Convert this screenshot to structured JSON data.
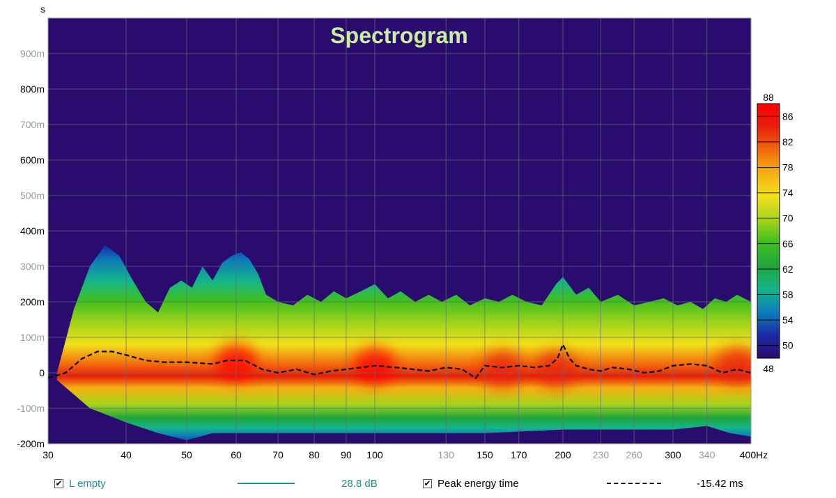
{
  "chart_data": {
    "type": "heatmap",
    "title": "Spectrogram",
    "ylabel": "s",
    "x_unit": "Hz",
    "xscale": "log",
    "xlim": [
      30,
      400
    ],
    "ylim": [
      -0.2,
      1.0
    ],
    "x_ticks": [
      {
        "value": 30,
        "label": "30",
        "major": true
      },
      {
        "value": 40,
        "label": "40",
        "major": true
      },
      {
        "value": 50,
        "label": "50",
        "major": true
      },
      {
        "value": 60,
        "label": "60",
        "major": true
      },
      {
        "value": 70,
        "label": "70",
        "major": true
      },
      {
        "value": 80,
        "label": "80",
        "major": true
      },
      {
        "value": 90,
        "label": "90",
        "major": true
      },
      {
        "value": 100,
        "label": "100",
        "major": true
      },
      {
        "value": 130,
        "label": "130",
        "major": false
      },
      {
        "value": 150,
        "label": "150",
        "major": true
      },
      {
        "value": 170,
        "label": "170",
        "major": true
      },
      {
        "value": 200,
        "label": "200",
        "major": true
      },
      {
        "value": 230,
        "label": "230",
        "major": false
      },
      {
        "value": 260,
        "label": "260",
        "major": false
      },
      {
        "value": 300,
        "label": "300",
        "major": true
      },
      {
        "value": 340,
        "label": "340",
        "major": false
      },
      {
        "value": 400,
        "label": "400Hz",
        "major": true
      }
    ],
    "y_ticks": [
      {
        "value": 0.9,
        "label": "900m",
        "major": false
      },
      {
        "value": 0.8,
        "label": "800m",
        "major": true
      },
      {
        "value": 0.7,
        "label": "700m",
        "major": false
      },
      {
        "value": 0.6,
        "label": "600m",
        "major": true
      },
      {
        "value": 0.5,
        "label": "500m",
        "major": false
      },
      {
        "value": 0.4,
        "label": "400m",
        "major": true
      },
      {
        "value": 0.3,
        "label": "300m",
        "major": false
      },
      {
        "value": 0.2,
        "label": "200m",
        "major": true
      },
      {
        "value": 0.1,
        "label": "100m",
        "major": false
      },
      {
        "value": 0.0,
        "label": "0",
        "major": true
      },
      {
        "value": -0.1,
        "label": "-100m",
        "major": false
      },
      {
        "value": -0.2,
        "label": "-200m",
        "major": true
      }
    ],
    "colorbar": {
      "min": 48,
      "max": 88,
      "min_label": "48",
      "max_label": "88",
      "ticks": [
        86,
        82,
        78,
        74,
        70,
        66,
        62,
        58,
        54,
        50
      ],
      "tick_labels": [
        "86",
        "82",
        "78",
        "74",
        "70",
        "66",
        "62",
        "58",
        "54",
        "50"
      ],
      "colors": [
        "#2a0b6e",
        "#1a2aa8",
        "#0a7fb8",
        "#15b48c",
        "#1fa63a",
        "#3fbf1f",
        "#a8d41a",
        "#f2e01a",
        "#f5b012",
        "#f26a0c",
        "#e8200c",
        "#ff0000"
      ]
    },
    "background_color": "#2a0b6e",
    "envelope_top": {
      "x": [
        31,
        33,
        35,
        37,
        39,
        41,
        43,
        45,
        47,
        49,
        51,
        53,
        55,
        57,
        59,
        61,
        63,
        65,
        67,
        70,
        74,
        78,
        82,
        86,
        90,
        95,
        100,
        105,
        110,
        116,
        122,
        128,
        135,
        142,
        150,
        158,
        166,
        175,
        185,
        195,
        200,
        210,
        220,
        230,
        245,
        260,
        275,
        290,
        305,
        320,
        335,
        350,
        365,
        380,
        400
      ],
      "y": [
        0.0,
        0.18,
        0.3,
        0.36,
        0.33,
        0.26,
        0.2,
        0.17,
        0.24,
        0.26,
        0.24,
        0.3,
        0.26,
        0.31,
        0.33,
        0.34,
        0.32,
        0.28,
        0.22,
        0.2,
        0.19,
        0.22,
        0.2,
        0.23,
        0.21,
        0.23,
        0.25,
        0.21,
        0.23,
        0.2,
        0.22,
        0.2,
        0.22,
        0.19,
        0.21,
        0.2,
        0.22,
        0.2,
        0.19,
        0.25,
        0.27,
        0.22,
        0.24,
        0.2,
        0.22,
        0.19,
        0.2,
        0.21,
        0.19,
        0.2,
        0.18,
        0.21,
        0.2,
        0.22,
        0.2
      ]
    },
    "envelope_bottom": {
      "x": [
        31,
        35,
        40,
        45,
        50,
        55,
        60,
        70,
        80,
        90,
        100,
        120,
        150,
        200,
        250,
        300,
        340,
        370,
        400
      ],
      "y": [
        -0.02,
        -0.1,
        -0.14,
        -0.17,
        -0.19,
        -0.17,
        -0.17,
        -0.17,
        -0.17,
        -0.17,
        -0.17,
        -0.17,
        -0.17,
        -0.16,
        -0.16,
        -0.16,
        -0.15,
        -0.17,
        -0.18
      ]
    },
    "hot_regions": [
      {
        "freq": 60,
        "time": 0.03,
        "db": 87
      },
      {
        "freq": 100,
        "time": 0.02,
        "db": 87
      },
      {
        "freq": 160,
        "time": 0.01,
        "db": 86
      },
      {
        "freq": 195,
        "time": 0.01,
        "db": 84
      },
      {
        "freq": 380,
        "time": 0.02,
        "db": 85
      }
    ],
    "series": [
      {
        "name": "Peak energy time",
        "style": "dashed",
        "color": "#000000",
        "x": [
          30,
          32,
          34,
          36,
          38,
          40,
          43,
          46,
          50,
          55,
          58,
          62,
          66,
          70,
          75,
          80,
          85,
          90,
          95,
          100,
          108,
          115,
          122,
          130,
          138,
          145,
          150,
          160,
          170,
          180,
          190,
          196,
          200,
          205,
          210,
          220,
          230,
          240,
          255,
          270,
          285,
          300,
          320,
          340,
          360,
          380,
          400
        ],
        "y": [
          -0.015,
          0.0,
          0.04,
          0.06,
          0.06,
          0.05,
          0.035,
          0.03,
          0.03,
          0.025,
          0.035,
          0.035,
          0.01,
          0.0,
          0.01,
          -0.005,
          0.005,
          0.01,
          0.015,
          0.02,
          0.015,
          0.01,
          0.005,
          0.015,
          0.01,
          -0.015,
          0.02,
          0.015,
          0.02,
          0.015,
          0.02,
          0.04,
          0.08,
          0.04,
          0.02,
          0.01,
          0.005,
          0.015,
          0.01,
          0.0,
          0.005,
          0.02,
          0.025,
          0.02,
          0.0,
          0.01,
          0.0
        ]
      }
    ]
  },
  "legend": {
    "item1_label": "L empty",
    "item1_value": "28.8 dB",
    "item1_color": "#1f8f8f",
    "item2_label": "Peak energy time",
    "item2_value": "-15.42 ms"
  }
}
